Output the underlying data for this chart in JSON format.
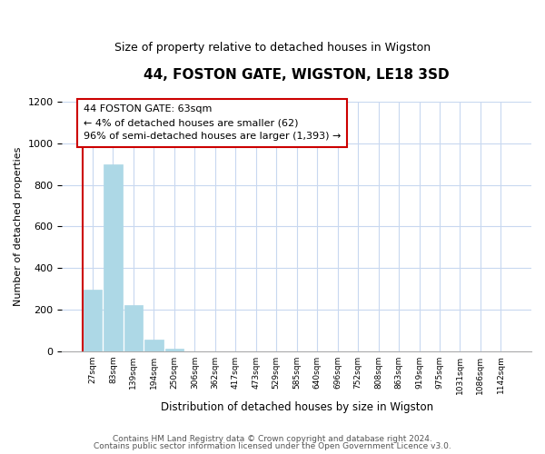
{
  "title": "44, FOSTON GATE, WIGSTON, LE18 3SD",
  "subtitle": "Size of property relative to detached houses in Wigston",
  "xlabel": "Distribution of detached houses by size in Wigston",
  "ylabel": "Number of detached properties",
  "bar_labels": [
    "27sqm",
    "83sqm",
    "139sqm",
    "194sqm",
    "250sqm",
    "306sqm",
    "362sqm",
    "417sqm",
    "473sqm",
    "529sqm",
    "585sqm",
    "640sqm",
    "696sqm",
    "752sqm",
    "808sqm",
    "863sqm",
    "919sqm",
    "975sqm",
    "1031sqm",
    "1086sqm",
    "1142sqm"
  ],
  "bar_values": [
    295,
    900,
    220,
    55,
    10,
    0,
    0,
    0,
    0,
    0,
    0,
    0,
    0,
    0,
    0,
    0,
    0,
    0,
    0,
    0,
    0
  ],
  "bar_color": "#add8e6",
  "bar_edge_color": "#add8e6",
  "ylim": [
    0,
    1200
  ],
  "yticks": [
    0,
    200,
    400,
    600,
    800,
    1000,
    1200
  ],
  "annotation_title": "44 FOSTON GATE: 63sqm",
  "annotation_line1": "← 4% of detached houses are smaller (62)",
  "annotation_line2": "96% of semi-detached houses are larger (1,393) →",
  "annotation_box_color": "#ffffff",
  "annotation_box_edge": "#cc0000",
  "vline_color": "#cc0000",
  "footer_line1": "Contains HM Land Registry data © Crown copyright and database right 2024.",
  "footer_line2": "Contains public sector information licensed under the Open Government Licence v3.0.",
  "background_color": "#ffffff",
  "grid_color": "#c8d8f0",
  "title_fontsize": 11,
  "subtitle_fontsize": 9,
  "ylabel_fontsize": 8,
  "xlabel_fontsize": 8.5,
  "tick_fontsize": 8,
  "annot_fontsize": 8,
  "footer_fontsize": 6.5
}
